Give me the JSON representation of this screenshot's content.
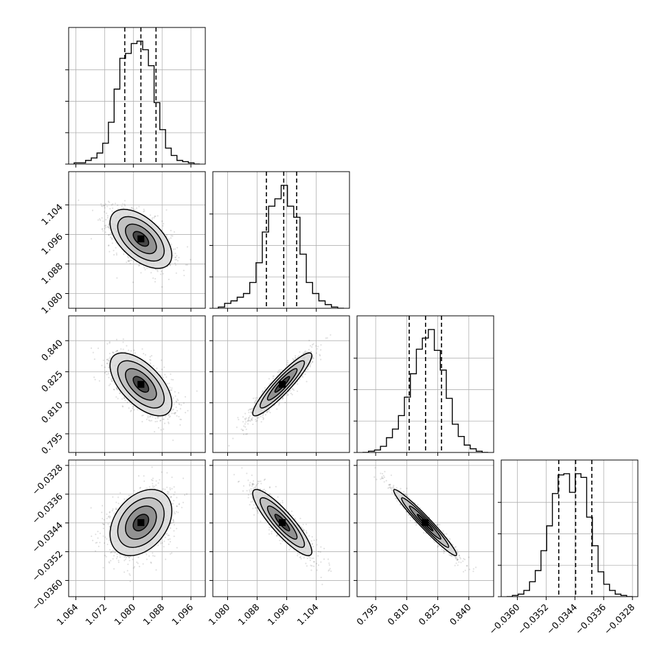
{
  "chart_data": {
    "type": "corner",
    "grid": true,
    "parameters": [
      {
        "range": [
          1.062,
          1.1
        ],
        "ticks": [
          1.064,
          1.072,
          1.08,
          1.088,
          1.096
        ],
        "tick_labels": [
          "1.064",
          "1.072",
          "1.080",
          "1.088",
          "1.096"
        ],
        "quantiles": [
          1.0776,
          1.0821,
          1.0863
        ],
        "mean": 1.0821,
        "sigma": 0.0043,
        "histogram": [
          0.01,
          0.01,
          0.03,
          0.05,
          0.09,
          0.17,
          0.34,
          0.61,
          0.86,
          0.9,
          0.98,
          1.0,
          0.93,
          0.8,
          0.5,
          0.28,
          0.13,
          0.07,
          0.03,
          0.02,
          0.01,
          0.0
        ]
      },
      {
        "range": [
          1.076,
          1.113
        ],
        "ticks": [
          1.08,
          1.088,
          1.096,
          1.104
        ],
        "tick_labels": [
          "1.080",
          "1.088",
          "1.096",
          "1.104"
        ],
        "quantiles": [
          1.0905,
          1.0952,
          1.0987
        ],
        "mean": 1.0948,
        "sigma": 0.004,
        "histogram": [
          0.01,
          0.04,
          0.06,
          0.09,
          0.12,
          0.21,
          0.37,
          0.62,
          0.83,
          0.89,
          1.0,
          0.83,
          0.74,
          0.44,
          0.21,
          0.12,
          0.06,
          0.03,
          0.01,
          0.0
        ]
      },
      {
        "range": [
          0.786,
          0.852
        ],
        "ticks": [
          0.795,
          0.81,
          0.825,
          0.84
        ],
        "tick_labels": [
          "0.795",
          "0.810",
          "0.825",
          "0.840"
        ],
        "quantiles": [
          0.8112,
          0.8191,
          0.8268
        ],
        "mean": 0.8189,
        "sigma": 0.0076,
        "histogram": [
          0.0,
          0.01,
          0.02,
          0.05,
          0.12,
          0.19,
          0.3,
          0.45,
          0.64,
          0.84,
          0.93,
          1.0,
          0.83,
          0.67,
          0.44,
          0.23,
          0.13,
          0.06,
          0.03,
          0.01,
          0.0
        ]
      },
      {
        "range": [
          -0.03645,
          -0.03265
        ],
        "ticks": [
          -0.036,
          -0.0352,
          -0.0344,
          -0.0336,
          -0.0328
        ],
        "tick_labels": [
          "−0.0360",
          "−0.0352",
          "−0.0344",
          "−0.0336",
          "−0.0328"
        ],
        "quantiles": [
          -0.03485,
          -0.03438,
          -0.03393
        ],
        "mean": -0.03439,
        "sigma": 0.00046,
        "histogram": [
          0.0,
          0.01,
          0.02,
          0.05,
          0.12,
          0.21,
          0.37,
          0.57,
          0.83,
          0.98,
          0.99,
          0.84,
          0.99,
          0.96,
          0.64,
          0.41,
          0.2,
          0.1,
          0.05,
          0.02,
          0.01,
          0.0
        ]
      }
    ],
    "correlations": [
      [
        1,
        -0.55,
        -0.6,
        0.35
      ],
      [
        -0.55,
        1,
        0.92,
        -0.88
      ],
      [
        -0.6,
        0.92,
        1,
        -0.97
      ],
      [
        0.35,
        -0.88,
        -0.97,
        1
      ]
    ],
    "contour_levels": [
      0.5,
      1.0,
      1.5,
      2.0
    ]
  },
  "colors": {
    "line": "#000000",
    "grid": "#b0b0b0",
    "scatter": "#000000"
  }
}
